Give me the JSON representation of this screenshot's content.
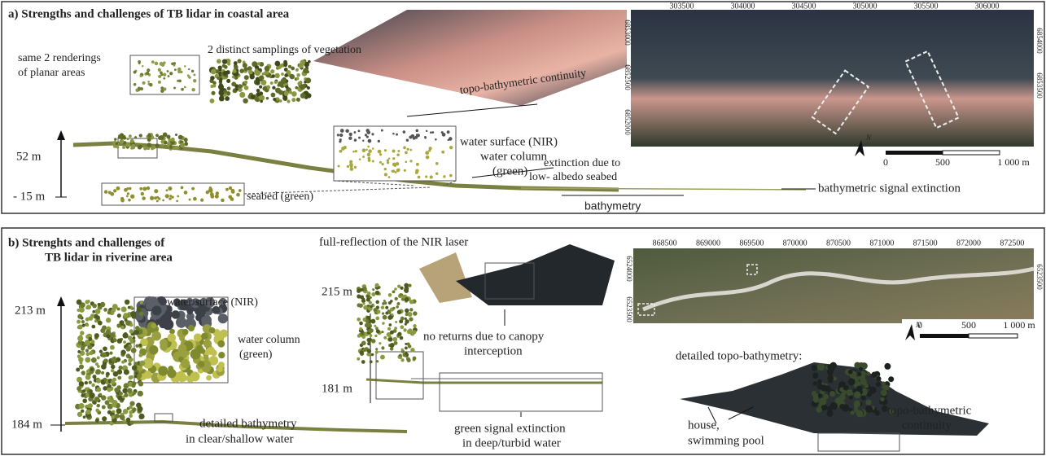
{
  "panel_a": {
    "title": "a) Strengths and challenges of TB lidar in coastal area",
    "vegetation_label": "2 distinct samplings of vegetation",
    "planar_label": [
      "same 2 renderings",
      "of planar areas"
    ],
    "continuity_label": "topo-bathymetric continuity",
    "water_surface": "water surface (NIR)",
    "water_column": [
      "water column",
      "(green)"
    ],
    "elevation_top": "52 m",
    "elevation_bottom": "- 15 m",
    "extinction_label": [
      "extinction due to",
      "low- albedo seabed"
    ],
    "seabed_label": "seabed (green)",
    "signal_extinction": "bathymetric signal extinction",
    "bathymetry_label": "bathymetry",
    "map": {
      "x_ticks": [
        303500,
        304000,
        304500,
        305000,
        305500,
        306000
      ],
      "y_ticks_left": [
        6853000,
        6852500,
        6852000
      ],
      "y_ticks_right": [
        6854000,
        6853500
      ],
      "north": "N",
      "scale": [
        "0",
        "500",
        "1 000 m"
      ]
    }
  },
  "panel_b": {
    "title": [
      "b) Strenghts and challenges of",
      "TB lidar in riverine area"
    ],
    "elevation_top": "213 m",
    "elevation_bottom": "184 m",
    "water_surface": "water surface (NIR)",
    "water_column": [
      "water column",
      "(green)"
    ],
    "bathymetry_label": [
      "detailed bathymetry",
      "in clear/shallow water"
    ],
    "full_reflection": "full-reflection of the NIR laser",
    "elevation2_top": "215 m",
    "elevation2_bottom": "181 m",
    "no_returns": [
      "no returns due to canopy",
      "interception"
    ],
    "green_extinction": [
      "green signal extinction",
      "in deep/turbid water"
    ],
    "map": {
      "x_ticks": [
        868500,
        869000,
        869500,
        870000,
        870500,
        871000,
        871500,
        872000,
        872500
      ],
      "y_ticks_left": [
        6524000,
        6523500
      ],
      "y_ticks_right": [
        6523500
      ],
      "north": "N",
      "scale": [
        "0",
        "500",
        "1 000 m"
      ]
    },
    "topo_label": "detailed topo-bathymetry:",
    "house_label": [
      "house,",
      "swimming pool"
    ],
    "continuity_label": [
      "topo-bathymetric",
      "continuity"
    ]
  }
}
